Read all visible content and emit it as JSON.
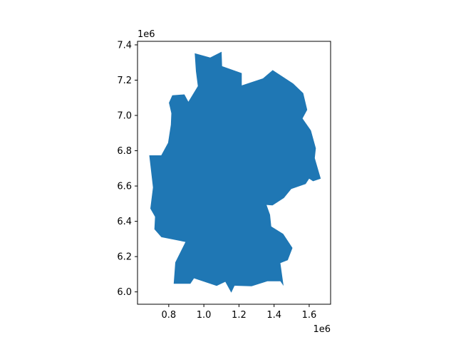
{
  "chart_data": {
    "type": "map",
    "title": "",
    "xlabel": "",
    "ylabel": "",
    "x_offset_label": "1e6",
    "y_offset_label": "1e6",
    "xlim": [
      0.622,
      1.722
    ],
    "ylim": [
      5.93,
      7.42
    ],
    "x_ticks": [
      {
        "value": 0.8,
        "label": "0.8"
      },
      {
        "value": 1.0,
        "label": "1.0"
      },
      {
        "value": 1.2,
        "label": "1.2"
      },
      {
        "value": 1.4,
        "label": "1.4"
      },
      {
        "value": 1.6,
        "label": "1.6"
      }
    ],
    "y_ticks": [
      {
        "value": 6.0,
        "label": "6.0"
      },
      {
        "value": 6.2,
        "label": "6.2"
      },
      {
        "value": 6.4,
        "label": "6.4"
      },
      {
        "value": 6.6,
        "label": "6.6"
      },
      {
        "value": 6.8,
        "label": "6.8"
      },
      {
        "value": 7.0,
        "label": "7.0"
      },
      {
        "value": 7.2,
        "label": "7.2"
      },
      {
        "value": 7.4,
        "label": "7.4"
      }
    ],
    "fill_color": "#1f77b4",
    "grid": false,
    "polygon": [
      [
        0.948,
        7.352
      ],
      [
        1.036,
        7.328
      ],
      [
        1.101,
        7.361
      ],
      [
        1.104,
        7.279
      ],
      [
        1.216,
        7.24
      ],
      [
        1.216,
        7.17
      ],
      [
        1.337,
        7.21
      ],
      [
        1.392,
        7.257
      ],
      [
        1.509,
        7.181
      ],
      [
        1.566,
        7.126
      ],
      [
        1.589,
        7.032
      ],
      [
        1.562,
        6.983
      ],
      [
        1.61,
        6.915
      ],
      [
        1.638,
        6.814
      ],
      [
        1.632,
        6.758
      ],
      [
        1.666,
        6.642
      ],
      [
        1.622,
        6.627
      ],
      [
        1.6,
        6.642
      ],
      [
        1.58,
        6.611
      ],
      [
        1.498,
        6.583
      ],
      [
        1.456,
        6.532
      ],
      [
        1.391,
        6.49
      ],
      [
        1.357,
        6.493
      ],
      [
        1.377,
        6.437
      ],
      [
        1.384,
        6.371
      ],
      [
        1.452,
        6.329
      ],
      [
        1.505,
        6.249
      ],
      [
        1.478,
        6.18
      ],
      [
        1.436,
        6.163
      ],
      [
        1.454,
        6.034
      ],
      [
        1.436,
        6.06
      ],
      [
        1.362,
        6.06
      ],
      [
        1.272,
        6.032
      ],
      [
        1.175,
        6.035
      ],
      [
        1.156,
        5.996
      ],
      [
        1.122,
        6.057
      ],
      [
        1.073,
        6.034
      ],
      [
        0.944,
        6.077
      ],
      [
        0.923,
        6.046
      ],
      [
        0.828,
        6.046
      ],
      [
        0.837,
        6.167
      ],
      [
        0.895,
        6.283
      ],
      [
        0.758,
        6.31
      ],
      [
        0.718,
        6.355
      ],
      [
        0.722,
        6.426
      ],
      [
        0.695,
        6.472
      ],
      [
        0.71,
        6.592
      ],
      [
        0.689,
        6.774
      ],
      [
        0.757,
        6.774
      ],
      [
        0.796,
        6.845
      ],
      [
        0.812,
        6.947
      ],
      [
        0.815,
        7.012
      ],
      [
        0.801,
        7.072
      ],
      [
        0.82,
        7.114
      ],
      [
        0.889,
        7.119
      ],
      [
        0.912,
        7.078
      ],
      [
        0.966,
        7.166
      ],
      [
        0.955,
        7.25
      ]
    ]
  }
}
